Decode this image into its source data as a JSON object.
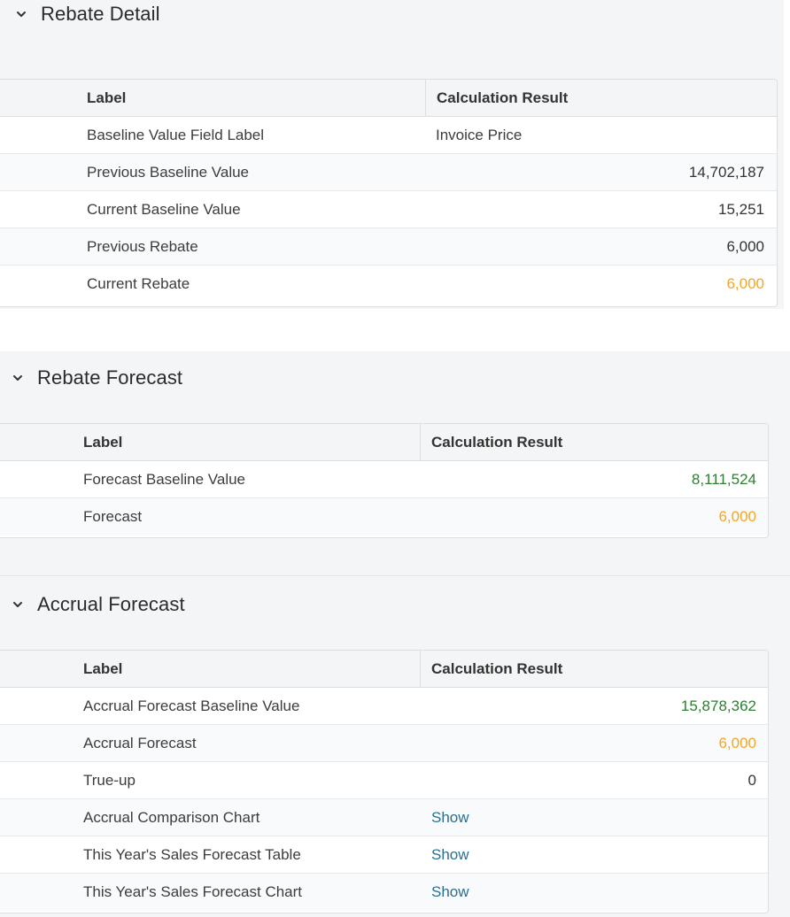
{
  "colors": {
    "green": "#2e7d32",
    "orange": "#f5a623",
    "link": "#2a6f8f"
  },
  "rebate_detail": {
    "title": "Rebate Detail",
    "icon": "chevron-down-icon",
    "columns": [
      "Label",
      "Calculation Result"
    ],
    "rows": [
      {
        "label": "Baseline Value Field Label",
        "value": "Invoice Price"
      },
      {
        "label": "Previous Baseline Value",
        "value": "14,702,187"
      },
      {
        "label": "Current Baseline Value",
        "value": "15,251"
      },
      {
        "label": "Previous Rebate",
        "value": "6,000"
      },
      {
        "label": "Current Rebate",
        "value": "6,000"
      }
    ]
  },
  "rebate_forecast": {
    "title": "Rebate Forecast",
    "icon": "chevron-down-icon",
    "columns": [
      "Label",
      "Calculation Result"
    ],
    "rows": [
      {
        "label": "Forecast Baseline Value",
        "value": "8,111,524"
      },
      {
        "label": "Forecast",
        "value": "6,000"
      }
    ]
  },
  "accrual_forecast": {
    "title": "Accrual Forecast",
    "icon": "chevron-down-icon",
    "columns": [
      "Label",
      "Calculation Result"
    ],
    "rows": [
      {
        "label": "Accrual Forecast Baseline Value",
        "value": "15,878,362"
      },
      {
        "label": "Accrual Forecast",
        "value": "6,000"
      },
      {
        "label": "True-up",
        "value": "0"
      },
      {
        "label": "Accrual Comparison Chart",
        "value": "Show"
      },
      {
        "label": "This Year's Sales Forecast Table",
        "value": "Show"
      },
      {
        "label": "This Year's Sales Forecast Chart",
        "value": "Show"
      }
    ]
  }
}
